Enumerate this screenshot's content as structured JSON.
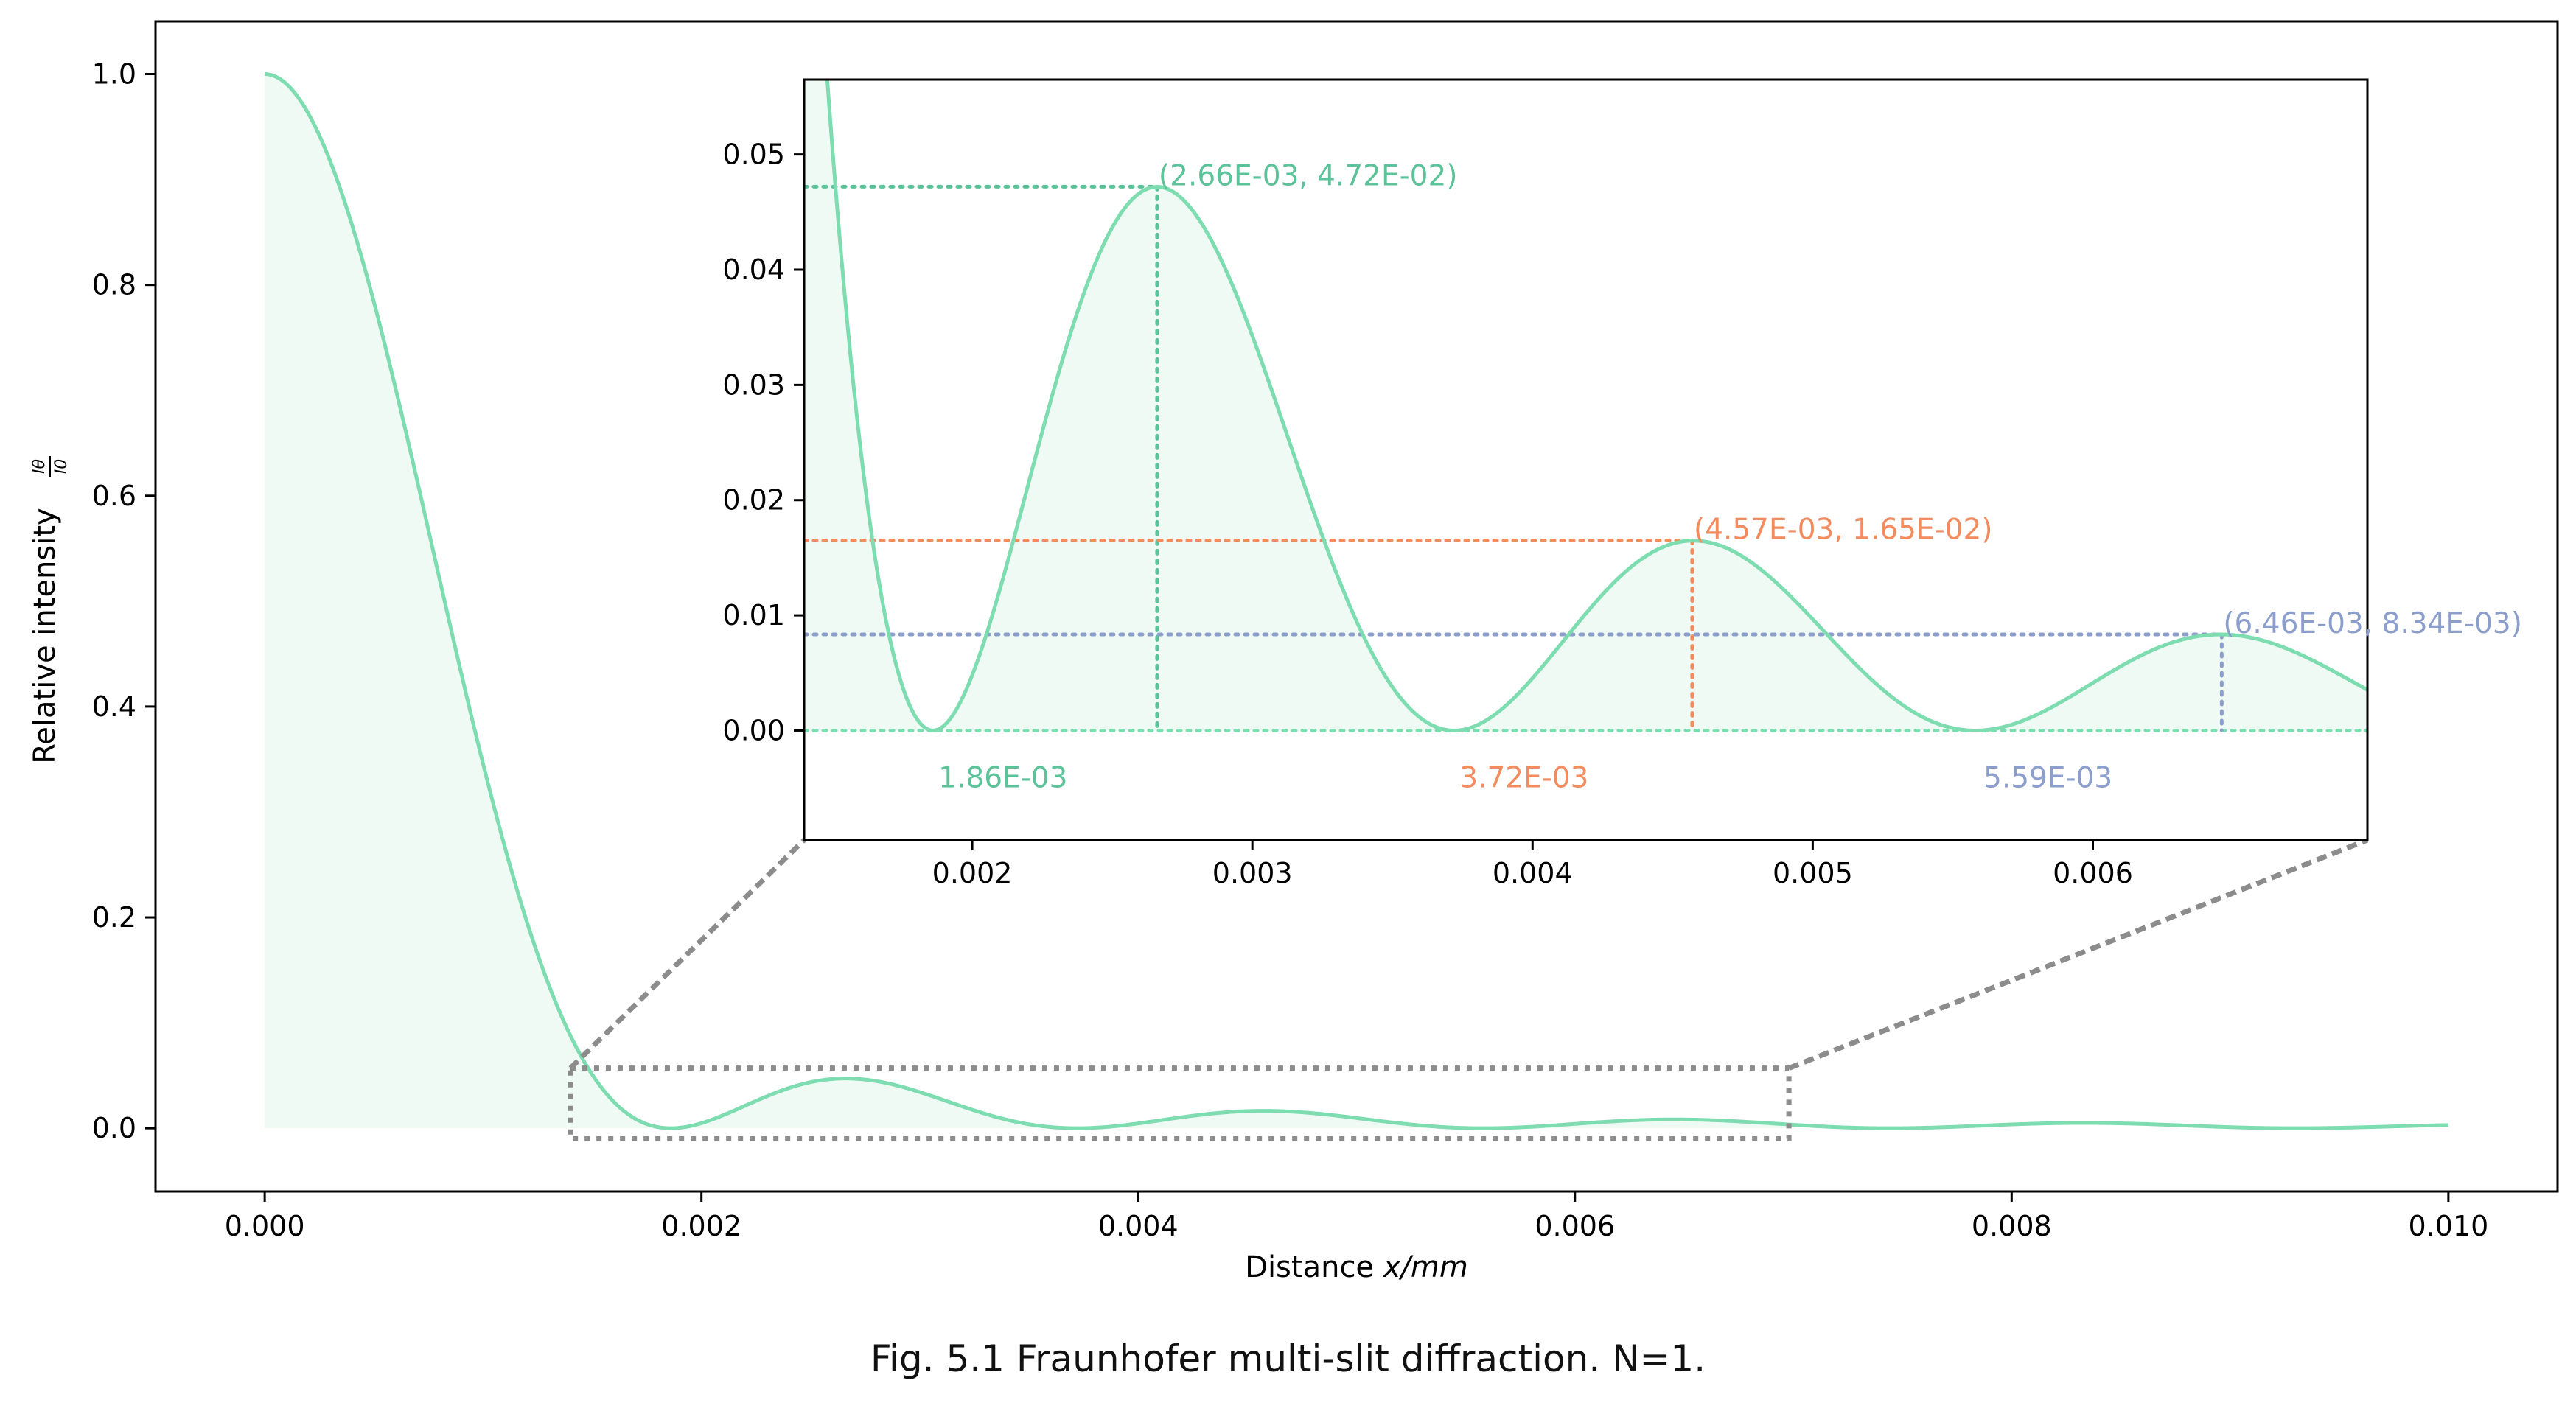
{
  "caption": "Fig. 5.1 Fraunhofer multi-slit diffraction. N=1.",
  "colors": {
    "curve": "#7ddcb0",
    "fill": "#effaf4",
    "first": "#5cc29a",
    "second": "#f28c5e",
    "third": "#8c9ecb",
    "zoom_box": "#8c8c8c"
  },
  "chart_data": [
    {
      "type": "area",
      "role": "main",
      "xlabel_prefix": "Distance ",
      "xlabel_var": "x/mm",
      "ylabel": "Relative intensity",
      "ylabel_frac": {
        "num": "Iθ",
        "den": "I0"
      },
      "xlim": [
        -0.0005,
        0.0105
      ],
      "ylim": [
        -0.06,
        1.05
      ],
      "xticks": [
        0.0,
        0.002,
        0.004,
        0.006,
        0.008,
        0.01
      ],
      "xtick_labels": [
        "0.000",
        "0.002",
        "0.004",
        "0.006",
        "0.008",
        "0.010"
      ],
      "yticks": [
        0.0,
        0.2,
        0.4,
        0.6,
        0.8,
        1.0
      ],
      "ytick_labels": [
        "0.0",
        "0.2",
        "0.4",
        "0.6",
        "0.8",
        "1.0"
      ],
      "curve": {
        "function": "sinc_squared",
        "first_zero": 0.00186,
        "x_range": [
          0.0,
          0.01
        ],
        "fill_range": [
          0.0,
          0.00698
        ]
      },
      "zoom_region": {
        "x": [
          0.0014,
          0.00698
        ],
        "y": [
          -0.01,
          0.057
        ]
      }
    },
    {
      "type": "area",
      "role": "inset",
      "xlim": [
        0.0014,
        0.00698
      ],
      "ylim": [
        -0.0095,
        0.0565
      ],
      "xticks": [
        0.002,
        0.003,
        0.004,
        0.005,
        0.006
      ],
      "xtick_labels": [
        "0.002",
        "0.003",
        "0.004",
        "0.005",
        "0.006"
      ],
      "yticks": [
        0.0,
        0.01,
        0.02,
        0.03,
        0.04,
        0.05
      ],
      "ytick_labels": [
        "0.00",
        "0.01",
        "0.02",
        "0.03",
        "0.04",
        "0.05"
      ],
      "maxima": [
        {
          "x": 0.00266,
          "y": 0.0472,
          "label": "(2.66E-03, 4.72E-02)",
          "color": "#5cc29a"
        },
        {
          "x": 0.00457,
          "y": 0.0165,
          "label": "(4.57E-03, 1.65E-02)",
          "color": "#f28c5e"
        },
        {
          "x": 0.00646,
          "y": 0.00834,
          "label": "(6.46E-03, 8.34E-03)",
          "color": "#8c9ecb"
        }
      ],
      "minima": [
        {
          "x": 0.00186,
          "label": "1.86E-03",
          "color": "#5cc29a"
        },
        {
          "x": 0.00372,
          "label": "3.72E-03",
          "color": "#f28c5e"
        },
        {
          "x": 0.00559,
          "label": "5.59E-03",
          "color": "#8c9ecb"
        }
      ]
    }
  ]
}
